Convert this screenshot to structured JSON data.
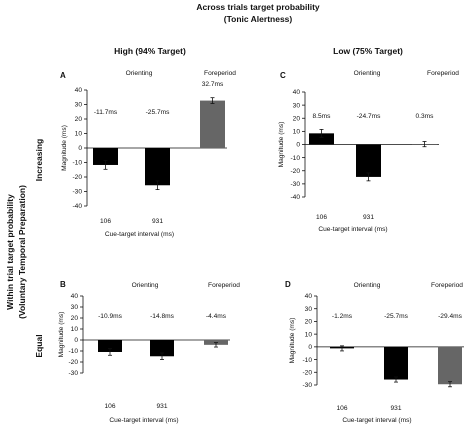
{
  "header": {
    "title": "Across trials target probability",
    "subtitle": "(Tonic Alertness)",
    "col_high": "High (94% Target)",
    "col_low": "Low (75% Target)",
    "side_line1": "Within trial target probability",
    "side_line2": "(Voluntary Temporal Preparation)",
    "row_increasing": "Increasing",
    "row_equal": "Equal"
  },
  "chart_data": [
    {
      "type": "bar",
      "panel": "A",
      "group_labels": [
        "Orienting",
        "Foreperiod"
      ],
      "categories": [
        "106",
        "931",
        ""
      ],
      "values": [
        -11.7,
        -25.7,
        32.7
      ],
      "errors": [
        3,
        3,
        2
      ],
      "data_labels": [
        "-11.7ms",
        "-25.7ms",
        "32.7ms"
      ],
      "colors": [
        "#000000",
        "#000000",
        "#666666"
      ],
      "ylabel": "Magnitude (ms)",
      "xlabel": "Cue-target interval (ms)",
      "ylim": [
        -40,
        40
      ],
      "yticks": [
        40,
        30,
        20,
        10,
        0,
        -10,
        -20,
        -30,
        -40
      ],
      "ytick_labels": [
        "40",
        "30",
        "20",
        "10",
        "0",
        "-10",
        "-20",
        "-30",
        "-40"
      ]
    },
    {
      "type": "bar",
      "panel": "C",
      "group_labels": [
        "Orienting",
        "Foreperiod"
      ],
      "categories": [
        "106",
        "931",
        ""
      ],
      "values": [
        8.5,
        -24.7,
        0.3
      ],
      "errors": [
        3,
        3,
        2
      ],
      "data_labels": [
        "8.5ms",
        "-24.7ms",
        "0.3ms"
      ],
      "colors": [
        "#000000",
        "#000000",
        "#666666"
      ],
      "ylabel": "Magnitude (ms)",
      "xlabel": "Cue-target interval (ms)",
      "ylim": [
        -40,
        40
      ],
      "yticks": [
        40,
        30,
        20,
        10,
        0,
        -10,
        -20,
        -30,
        -40
      ],
      "ytick_labels": [
        "40",
        "30",
        "20",
        "10",
        "0",
        "-10",
        "-20",
        "-30",
        "-40"
      ]
    },
    {
      "type": "bar",
      "panel": "B",
      "group_labels": [
        "Orienting",
        "Foreperiod"
      ],
      "categories": [
        "106",
        "931",
        ""
      ],
      "values": [
        -10.9,
        -14.8,
        -4.4
      ],
      "errors": [
        3,
        3,
        2
      ],
      "data_labels": [
        "-10.9ms",
        "-14.8ms",
        "-4.4ms"
      ],
      "colors": [
        "#000000",
        "#000000",
        "#666666"
      ],
      "ylabel": "Magnitude (ms)",
      "xlabel": "Cue-target interval (ms)",
      "ylim": [
        -40,
        40
      ],
      "yticks": [
        40,
        30,
        20,
        10,
        0,
        -10,
        -20,
        -30
      ],
      "ytick_labels": [
        "40",
        "30",
        "20",
        "10",
        "0",
        "-10",
        "-20",
        "-30"
      ]
    },
    {
      "type": "bar",
      "panel": "D",
      "group_labels": [
        "Orienting",
        "Foreperiod"
      ],
      "categories": [
        "106",
        "931",
        ""
      ],
      "values": [
        -1.2,
        -25.7,
        -29.4
      ],
      "errors": [
        2,
        2,
        2
      ],
      "data_labels": [
        "-1.2ms",
        "-25.7ms",
        "-29.4ms"
      ],
      "colors": [
        "#000000",
        "#000000",
        "#666666"
      ],
      "ylabel": "Magnitude (ms)",
      "xlabel": "Cue-target interval (ms)",
      "ylim": [
        -40,
        40
      ],
      "yticks": [
        40,
        30,
        20,
        10,
        0,
        -10,
        -20,
        -30
      ],
      "ytick_labels": [
        "40",
        "30",
        "20",
        "10",
        "0",
        "-10",
        "-20",
        "-30"
      ]
    }
  ]
}
